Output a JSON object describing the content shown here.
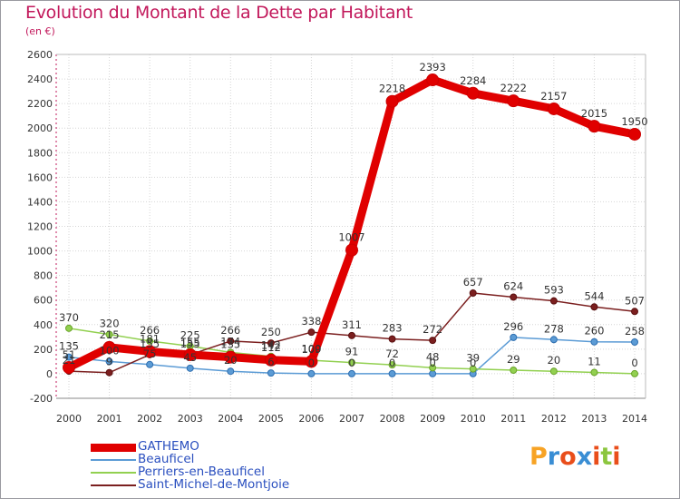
{
  "header": {
    "title": "Evolution du Montant de la Dette par Habitant",
    "subtitle": "(en €)"
  },
  "brand": {
    "logo_text": "Proxiti"
  },
  "colors": {
    "GATHEMO": "#e00000",
    "Beauficel": "#5b9bd5",
    "Perriers-en-Beauficel": "#92d050",
    "Saint-Michel-de-Montjoie": "#7b1f1f",
    "title": "#c2185b",
    "legend_text": "#2a4fbf"
  },
  "chart_data": {
    "type": "line",
    "title": "Evolution du Montant de la Dette par Habitant",
    "subtitle": "(en €)",
    "xlabel": "",
    "ylabel": "",
    "x": [
      "2000",
      "2001",
      "2002",
      "2003",
      "2004",
      "2005",
      "2006",
      "2007",
      "2008",
      "2009",
      "2010",
      "2011",
      "2012",
      "2013",
      "2014"
    ],
    "ylim": [
      -200,
      2600
    ],
    "yticks": [
      "-200",
      "0",
      "200",
      "400",
      "600",
      "800",
      "1000",
      "1200",
      "1400",
      "1600",
      "1800",
      "2000",
      "2200",
      "2400",
      "2600"
    ],
    "grid": true,
    "legend_position": "bottom-left",
    "series": [
      {
        "name": "GATHEMO",
        "values": [
          51,
          215,
          181,
          155,
          135,
          112,
          100,
          1007,
          2218,
          2393,
          2284,
          2222,
          2157,
          2015,
          1950
        ],
        "labels": [
          "51",
          "215",
          "181",
          "155",
          "135",
          "112",
          "100",
          "1007",
          "2218",
          "2393",
          "2284",
          "2222",
          "2157",
          "2015",
          "1950"
        ]
      },
      {
        "name": "Beauficel",
        "values": [
          135,
          100,
          75,
          45,
          20,
          6,
          0,
          0,
          0,
          0,
          0,
          296,
          278,
          260,
          258
        ],
        "labels": [
          "135",
          "100",
          "75",
          "45",
          "20",
          "6",
          "0",
          "0",
          "0",
          "0",
          "0",
          "296",
          "278",
          "260",
          "258"
        ]
      },
      {
        "name": "Perriers-en-Beauficel",
        "values": [
          370,
          320,
          266,
          225,
          174,
          142,
          109,
          91,
          72,
          48,
          39,
          29,
          20,
          11,
          0
        ],
        "labels": [
          "370",
          "320",
          "266",
          "225",
          "174",
          "142",
          "109",
          "91",
          "72",
          "48",
          "39",
          "29",
          "20",
          "11",
          "0"
        ]
      },
      {
        "name": "Saint-Michel-de-Montjoie",
        "values": [
          21,
          9,
          155,
          155,
          266,
          250,
          338,
          311,
          283,
          272,
          657,
          624,
          593,
          544,
          507
        ],
        "labels": [
          "21",
          "9",
          "155",
          "155",
          "266",
          "250",
          "338",
          "311",
          "283",
          "272",
          "657",
          "624",
          "593",
          "544",
          "507"
        ]
      }
    ]
  }
}
